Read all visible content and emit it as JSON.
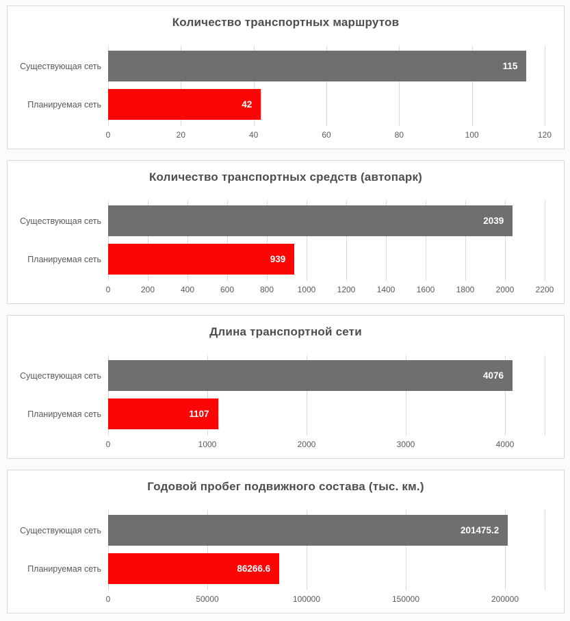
{
  "page": {
    "background": "#fbfbfb",
    "panel_background": "#ffffff",
    "panel_border_color": "#d5dbe0"
  },
  "styles": {
    "bar_color_existing": "#716e6e",
    "bar_color_planned": "#fe0505",
    "gridline_color": "#d9d9d9",
    "title_color": "#4d4d4d",
    "axis_text_color": "#595959",
    "value_text_color": "#ffffff"
  },
  "chart_data": [
    {
      "type": "bar",
      "orientation": "horizontal",
      "title": "Количество транспортных маршрутов",
      "categories": [
        "Существующая сеть",
        "Планируемая сеть"
      ],
      "values": [
        115,
        42
      ],
      "value_labels": [
        "115",
        "42"
      ],
      "bar_colors": [
        "#716e6e",
        "#fe0505"
      ],
      "xlim": [
        0,
        120
      ],
      "xticks": [
        0,
        20,
        40,
        60,
        80,
        100,
        120
      ],
      "xtick_labels": [
        "0",
        "20",
        "40",
        "60",
        "80",
        "100",
        "120"
      ],
      "grid": true,
      "legend": false
    },
    {
      "type": "bar",
      "orientation": "horizontal",
      "title": "Количество транспортных средств (автопарк)",
      "categories": [
        "Существующая сеть",
        "Планируемая сеть"
      ],
      "values": [
        2039,
        939
      ],
      "value_labels": [
        "2039",
        "939"
      ],
      "bar_colors": [
        "#716e6e",
        "#fe0505"
      ],
      "xlim": [
        0,
        2200
      ],
      "xticks": [
        0,
        200,
        400,
        600,
        800,
        1000,
        1200,
        1400,
        1600,
        1800,
        2000,
        2200
      ],
      "xtick_labels": [
        "0",
        "200",
        "400",
        "600",
        "800",
        "1000",
        "1200",
        "1400",
        "1600",
        "1800",
        "2000",
        "2200"
      ],
      "grid": true,
      "legend": false
    },
    {
      "type": "bar",
      "orientation": "horizontal",
      "title": "Длина транспортной сети",
      "categories": [
        "Существующая сеть",
        "Планируемая сеть"
      ],
      "values": [
        4076,
        1107
      ],
      "value_labels": [
        "4076",
        "1107"
      ],
      "bar_colors": [
        "#716e6e",
        "#fe0505"
      ],
      "xlim": [
        0,
        4400
      ],
      "xticks": [
        0,
        1000,
        2000,
        3000,
        4000
      ],
      "xtick_labels": [
        "0",
        "1000",
        "2000",
        "3000",
        "4000"
      ],
      "grid": true,
      "legend": false
    },
    {
      "type": "bar",
      "orientation": "horizontal",
      "title": "Годовой пробег подвижного состава (тыс. км.)",
      "categories": [
        "Существующая сеть",
        "Планируемая сеть"
      ],
      "values": [
        201475.2,
        86266.6
      ],
      "value_labels": [
        "201475.2",
        "86266.6"
      ],
      "bar_colors": [
        "#716e6e",
        "#fe0505"
      ],
      "xlim": [
        0,
        220000
      ],
      "xticks": [
        0,
        50000,
        100000,
        150000,
        200000
      ],
      "xtick_labels": [
        "0",
        "50000",
        "100000",
        "150000",
        "200000"
      ],
      "grid": true,
      "legend": false
    }
  ]
}
